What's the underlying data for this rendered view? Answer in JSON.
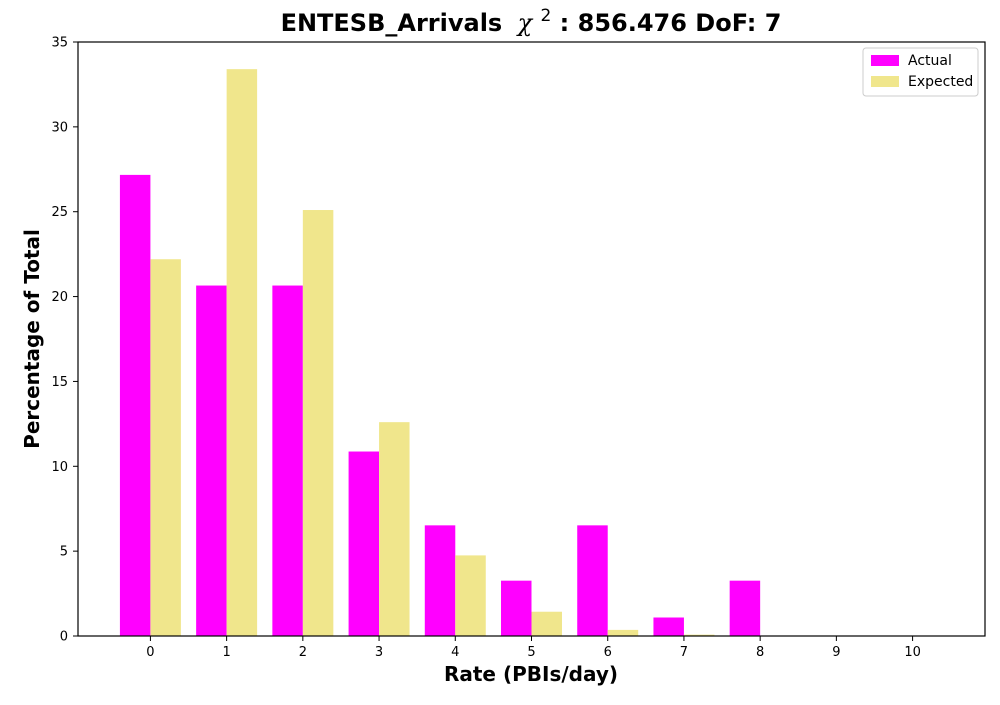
{
  "chart_data": {
    "type": "bar",
    "title": "ENTESB_Arrivals",
    "title_symbol": "χ",
    "title_exponent": "2",
    "title_suffix": ": 856.476 DoF: 7",
    "xlabel": "Rate (PBIs/day)",
    "ylabel": "Percentage of Total",
    "categories": [
      "0",
      "1",
      "2",
      "3",
      "4",
      "5",
      "6",
      "7",
      "8",
      "9",
      "10"
    ],
    "x": [
      0,
      1,
      2,
      3,
      4,
      5,
      6,
      7,
      8,
      9,
      10
    ],
    "xlim": [
      -0.95,
      10.95
    ],
    "ylim": [
      0,
      35
    ],
    "yticks": [
      0,
      5,
      10,
      15,
      20,
      25,
      30,
      35
    ],
    "legend_position": "top-right",
    "grid": false,
    "series": [
      {
        "name": "Actual",
        "color": "#ff00ff",
        "values": [
          27.17,
          20.65,
          20.65,
          10.87,
          6.52,
          3.26,
          6.52,
          1.09,
          3.26,
          0,
          0
        ]
      },
      {
        "name": "Expected",
        "color": "#f0e68c",
        "values": [
          22.2,
          33.4,
          25.1,
          12.6,
          4.75,
          1.43,
          0.36,
          0.08,
          0.015,
          0.002,
          0.0003
        ]
      }
    ]
  }
}
